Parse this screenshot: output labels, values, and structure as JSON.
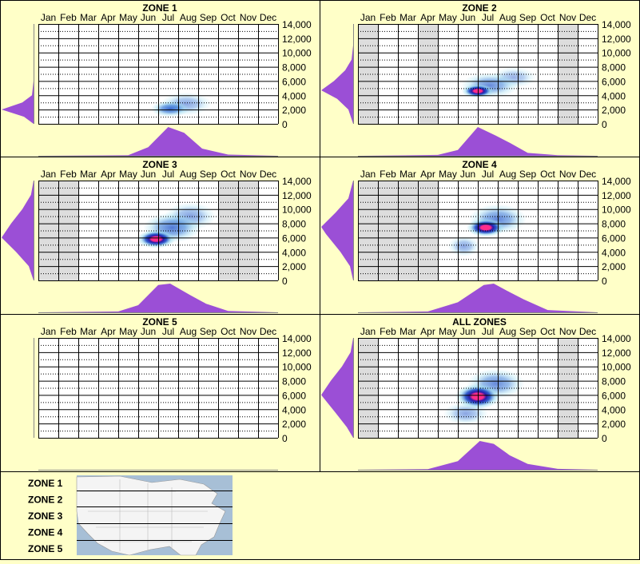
{
  "months": [
    "Jan",
    "Feb",
    "Mar",
    "Apr",
    "May",
    "Jun",
    "Jul",
    "Aug",
    "Sep",
    "Oct",
    "Nov",
    "Dec"
  ],
  "y_ticks": [
    "14,000",
    "12,000",
    "10,000",
    "8,000",
    "6,000",
    "4,000",
    "2,000",
    "0"
  ],
  "chart_data": [
    {
      "type": "heatmap",
      "title": "ZONE 1",
      "x_categories": [
        "Jan",
        "Feb",
        "Mar",
        "Apr",
        "May",
        "Jun",
        "Jul",
        "Aug",
        "Sep",
        "Oct",
        "Nov",
        "Dec"
      ],
      "ylim": [
        0,
        14000
      ],
      "has_data": true,
      "shaded_months": [],
      "hotspots": [
        {
          "month": 6.6,
          "elevation": 2100,
          "intensity": 0.85,
          "spread_months": 0.6,
          "spread_elev": 700
        },
        {
          "month": 7.4,
          "elevation": 2800,
          "intensity": 0.3,
          "spread_months": 0.8,
          "spread_elev": 1000
        }
      ],
      "elevation_profile": [
        [
          0,
          0
        ],
        [
          1000,
          0.3
        ],
        [
          2000,
          1
        ],
        [
          3000,
          0.35
        ],
        [
          4000,
          0.05
        ],
        [
          6000,
          0
        ]
      ],
      "month_profile": [
        [
          0,
          0
        ],
        [
          4.5,
          0.02
        ],
        [
          5.5,
          0.3
        ],
        [
          6.5,
          1
        ],
        [
          7.3,
          0.8
        ],
        [
          8.2,
          0.25
        ],
        [
          9.5,
          0.04
        ],
        [
          12,
          0
        ]
      ]
    },
    {
      "type": "heatmap",
      "title": "ZONE 2",
      "x_categories": [
        "Jan",
        "Feb",
        "Mar",
        "Apr",
        "May",
        "Jun",
        "Jul",
        "Aug",
        "Sep",
        "Oct",
        "Nov",
        "Dec"
      ],
      "ylim": [
        0,
        14000
      ],
      "has_data": true,
      "shaded_months": [
        0,
        3,
        10
      ],
      "hotspots": [
        {
          "month": 6.0,
          "elevation": 4600,
          "intensity": 1.0,
          "spread_months": 0.5,
          "spread_elev": 600
        },
        {
          "month": 6.6,
          "elevation": 5400,
          "intensity": 0.55,
          "spread_months": 0.9,
          "spread_elev": 1100
        },
        {
          "month": 7.8,
          "elevation": 6500,
          "intensity": 0.2,
          "spread_months": 0.7,
          "spread_elev": 900
        }
      ],
      "elevation_profile": [
        [
          0,
          0
        ],
        [
          2000,
          0.15
        ],
        [
          3500,
          0.5
        ],
        [
          4700,
          1
        ],
        [
          6000,
          0.6
        ],
        [
          7500,
          0.25
        ],
        [
          9000,
          0.05
        ],
        [
          11000,
          0
        ]
      ],
      "month_profile": [
        [
          0,
          0
        ],
        [
          4.0,
          0.03
        ],
        [
          5.0,
          0.2
        ],
        [
          6.0,
          1
        ],
        [
          6.9,
          0.7
        ],
        [
          7.6,
          0.45
        ],
        [
          8.5,
          0.1
        ],
        [
          10,
          0.02
        ],
        [
          12,
          0
        ]
      ]
    },
    {
      "type": "heatmap",
      "title": "ZONE 3",
      "x_categories": [
        "Jan",
        "Feb",
        "Mar",
        "Apr",
        "May",
        "Jun",
        "Jul",
        "Aug",
        "Sep",
        "Oct",
        "Nov",
        "Dec"
      ],
      "ylim": [
        0,
        14000
      ],
      "has_data": true,
      "shaded_months": [
        0,
        1,
        9,
        10
      ],
      "hotspots": [
        {
          "month": 5.9,
          "elevation": 5800,
          "intensity": 1.0,
          "spread_months": 0.6,
          "spread_elev": 800
        },
        {
          "month": 6.7,
          "elevation": 7400,
          "intensity": 0.7,
          "spread_months": 0.9,
          "spread_elev": 1300
        },
        {
          "month": 7.6,
          "elevation": 9000,
          "intensity": 0.35,
          "spread_months": 0.8,
          "spread_elev": 1200
        }
      ],
      "elevation_profile": [
        [
          0,
          0
        ],
        [
          2000,
          0.15
        ],
        [
          4000,
          0.55
        ],
        [
          6000,
          1
        ],
        [
          8000,
          0.7
        ],
        [
          10000,
          0.35
        ],
        [
          12000,
          0.08
        ],
        [
          14000,
          0
        ]
      ],
      "month_profile": [
        [
          0,
          0
        ],
        [
          4.0,
          0.03
        ],
        [
          5.0,
          0.25
        ],
        [
          6.0,
          0.95
        ],
        [
          6.6,
          1
        ],
        [
          7.6,
          0.6
        ],
        [
          8.4,
          0.3
        ],
        [
          9.5,
          0.05
        ],
        [
          12,
          0
        ]
      ]
    },
    {
      "type": "heatmap",
      "title": "ZONE 4",
      "x_categories": [
        "Jan",
        "Feb",
        "Mar",
        "Apr",
        "May",
        "Jun",
        "Jul",
        "Aug",
        "Sep",
        "Oct",
        "Nov",
        "Dec"
      ],
      "ylim": [
        0,
        14000
      ],
      "has_data": true,
      "shaded_months": [
        0,
        1,
        2,
        3
      ],
      "hotspots": [
        {
          "month": 6.4,
          "elevation": 7400,
          "intensity": 1.0,
          "spread_months": 0.6,
          "spread_elev": 800
        },
        {
          "month": 7.0,
          "elevation": 8600,
          "intensity": 0.6,
          "spread_months": 0.9,
          "spread_elev": 1300
        },
        {
          "month": 5.3,
          "elevation": 4800,
          "intensity": 0.3,
          "spread_months": 0.5,
          "spread_elev": 900
        }
      ],
      "elevation_profile": [
        [
          0,
          0
        ],
        [
          2000,
          0.1
        ],
        [
          4000,
          0.4
        ],
        [
          6500,
          0.85
        ],
        [
          7500,
          1
        ],
        [
          9500,
          0.55
        ],
        [
          11500,
          0.15
        ],
        [
          14000,
          0
        ]
      ],
      "month_profile": [
        [
          0,
          0
        ],
        [
          3.5,
          0.03
        ],
        [
          5.0,
          0.35
        ],
        [
          6.3,
          0.95
        ],
        [
          6.8,
          1
        ],
        [
          7.6,
          0.7
        ],
        [
          8.3,
          0.45
        ],
        [
          9.5,
          0.08
        ],
        [
          12,
          0
        ]
      ]
    },
    {
      "type": "heatmap",
      "title": "ZONE 5",
      "x_categories": [
        "Jan",
        "Feb",
        "Mar",
        "Apr",
        "May",
        "Jun",
        "Jul",
        "Aug",
        "Sep",
        "Oct",
        "Nov",
        "Dec"
      ],
      "ylim": [
        0,
        14000
      ],
      "has_data": false,
      "shaded_months": [],
      "hotspots": [],
      "elevation_profile": [],
      "month_profile": []
    },
    {
      "type": "heatmap",
      "title": "ALL ZONES",
      "x_categories": [
        "Jan",
        "Feb",
        "Mar",
        "Apr",
        "May",
        "Jun",
        "Jul",
        "Aug",
        "Sep",
        "Oct",
        "Nov",
        "Dec"
      ],
      "ylim": [
        0,
        14000
      ],
      "has_data": true,
      "shaded_months": [
        0,
        10
      ],
      "hotspots": [
        {
          "month": 6.0,
          "elevation": 5800,
          "intensity": 1.0,
          "spread_months": 0.7,
          "spread_elev": 1100
        },
        {
          "month": 6.9,
          "elevation": 7600,
          "intensity": 0.55,
          "spread_months": 0.9,
          "spread_elev": 1300
        },
        {
          "month": 5.4,
          "elevation": 3400,
          "intensity": 0.3,
          "spread_months": 0.7,
          "spread_elev": 1000
        }
      ],
      "elevation_profile": [
        [
          0,
          0
        ],
        [
          1500,
          0.2
        ],
        [
          3500,
          0.55
        ],
        [
          6000,
          1
        ],
        [
          8000,
          0.7
        ],
        [
          10000,
          0.35
        ],
        [
          12000,
          0.08
        ],
        [
          14000,
          0
        ]
      ],
      "month_profile": [
        [
          0,
          0
        ],
        [
          3.5,
          0.02
        ],
        [
          5.0,
          0.3
        ],
        [
          6.1,
          1
        ],
        [
          6.8,
          0.9
        ],
        [
          7.6,
          0.5
        ],
        [
          8.5,
          0.2
        ],
        [
          10,
          0.03
        ],
        [
          12,
          0
        ]
      ]
    }
  ],
  "legend": {
    "zones": [
      "ZONE 1",
      "ZONE 2",
      "ZONE 3",
      "ZONE 4",
      "ZONE 5"
    ],
    "map_description": "map-of-north-america"
  },
  "colors": {
    "background": "#ffffc8",
    "grid_bg": "#ffffff",
    "shaded_month": "#dddddd",
    "profile": "#9b4fd6",
    "heat_low": "#9adcf0",
    "heat_mid": "#1c4fc8",
    "heat_high": "#ff2d8a"
  }
}
